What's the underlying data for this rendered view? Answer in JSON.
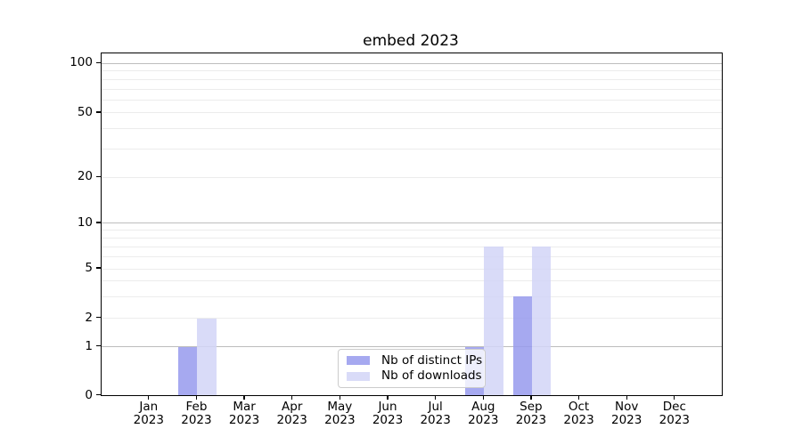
{
  "chart_data": {
    "type": "bar",
    "title": "embed 2023",
    "x_axis": {
      "months": [
        "Jan",
        "Feb",
        "Mar",
        "Apr",
        "May",
        "Jun",
        "Jul",
        "Aug",
        "Sep",
        "Oct",
        "Nov",
        "Dec"
      ],
      "year": "2023"
    },
    "y_axis": {
      "scale": "symlog",
      "tick_labels": [
        "0",
        "1",
        "2",
        "5",
        "10",
        "20",
        "50",
        "100"
      ],
      "tick_values": [
        0,
        1,
        2,
        5,
        10,
        20,
        50,
        100
      ],
      "major_grid_values": [
        1,
        10,
        100
      ],
      "minor_grid_values": [
        2,
        3,
        4,
        5,
        6,
        7,
        8,
        9,
        20,
        30,
        40,
        50,
        60,
        70,
        80,
        90
      ],
      "ylim": [
        0,
        115
      ],
      "grid": true
    },
    "series": [
      {
        "name": "Nb of distinct IPs",
        "color": "#a6a9f0",
        "values": [
          0,
          1,
          0,
          0,
          0,
          0,
          0,
          1,
          3,
          0,
          0,
          0
        ]
      },
      {
        "name": "Nb of downloads",
        "color": "#d9dbf8",
        "values": [
          0,
          2,
          0,
          0,
          0,
          0,
          0,
          7,
          7,
          0,
          0,
          0
        ]
      }
    ],
    "legend": {
      "entries": [
        "Nb of distinct IPs",
        "Nb of downloads"
      ],
      "position": "lower center"
    }
  }
}
